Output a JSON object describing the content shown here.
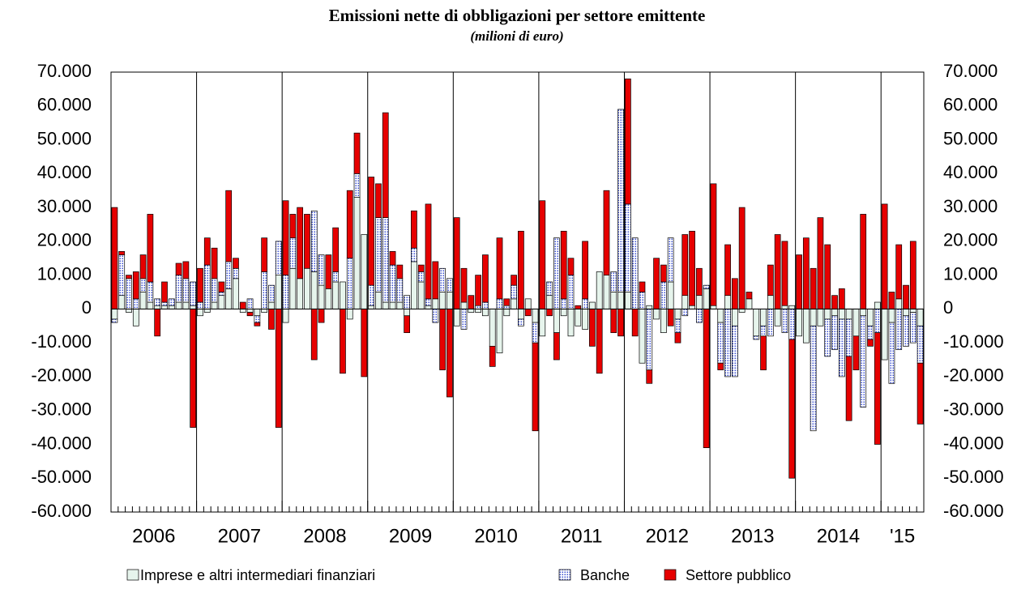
{
  "chart_data": {
    "type": "stacked_bar",
    "title": "Emissioni nette di obbligazioni per settore emittente",
    "subtitle": "(milioni di euro)",
    "year_labels": [
      "2006",
      "2007",
      "2008",
      "2009",
      "2010",
      "2011",
      "2012",
      "2013",
      "2014",
      "'15"
    ],
    "ylim": [
      -60000,
      70000
    ],
    "yticks": [
      {
        "value": -60000,
        "label": "-60.000"
      },
      {
        "value": -50000,
        "label": "-50.000"
      },
      {
        "value": -40000,
        "label": "-40.000"
      },
      {
        "value": -30000,
        "label": "-30.000"
      },
      {
        "value": -20000,
        "label": "-20.000"
      },
      {
        "value": -10000,
        "label": "-10.000"
      },
      0,
      {
        "value": 10000,
        "label": "10.000"
      },
      {
        "value": 20000,
        "label": "20.000"
      },
      {
        "value": 30000,
        "label": "30.000"
      },
      {
        "value": 40000,
        "label": "40.000"
      },
      {
        "value": 50000,
        "label": "50.000"
      },
      {
        "value": 60000,
        "label": "60.000"
      },
      {
        "value": 70000,
        "label": "70.000"
      }
    ],
    "y2lim": [
      -60000,
      70000
    ],
    "y2ticks": [
      {
        "value": -60000,
        "label": "-60.000"
      },
      {
        "value": -50000,
        "label": "-50.000"
      },
      {
        "value": -40000,
        "label": "-40.000"
      },
      {
        "value": -30000,
        "label": "-30.000"
      },
      {
        "value": -20000,
        "label": "-20.000"
      },
      {
        "value": -10000,
        "label": "-10.000"
      },
      0,
      {
        "value": 10000,
        "label": "10.000"
      },
      {
        "value": 20000,
        "label": "20.000"
      },
      {
        "value": 30000,
        "label": "30.000"
      },
      {
        "value": 40000,
        "label": "40.000"
      },
      {
        "value": 50000,
        "label": "50.000"
      },
      {
        "value": 60000,
        "label": "60.000"
      },
      {
        "value": 70000,
        "label": "70.000"
      }
    ],
    "series": [
      {
        "name": "Imprese e altri intermediari finanziari",
        "color": "#e6f4ec",
        "pattern": "solid",
        "values": [
          -3000,
          4000,
          -1000,
          -5000,
          5000,
          2000,
          1000,
          1000,
          1000,
          2000,
          2000,
          1000,
          -2000,
          -1000,
          2000,
          4000,
          6000,
          9000,
          -1000,
          -1000,
          -2000,
          -1000,
          2000,
          10000,
          -4000,
          12000,
          9000,
          12000,
          11000,
          7000,
          6000,
          8000,
          8000,
          -3000,
          33000,
          22000,
          1000,
          5000,
          2000,
          2000,
          2000,
          -2000,
          14000,
          8000,
          1000,
          3000,
          5000,
          5000,
          -5000,
          2000,
          -1000,
          -1000,
          -2000,
          -11000,
          -13000,
          -2000,
          3000,
          -3000,
          3000,
          -4000,
          -8000,
          4000,
          -7000,
          -2000,
          -8000,
          -5000,
          -6000,
          2000,
          11000,
          10000,
          5000,
          5000,
          5000,
          0,
          -16000,
          1000,
          -3000,
          -7000,
          8000,
          -3000,
          4000,
          1000,
          4000,
          6000,
          1000,
          -4000,
          4000,
          -5000,
          -1000,
          3000,
          -8000,
          -5000,
          4000,
          -5000,
          1000,
          1000,
          -8000,
          -10000,
          -5000,
          -5000,
          -3000,
          -2000,
          -3000,
          -3000,
          -8000,
          -2000,
          -5000,
          2000,
          -15000,
          -4000,
          3000,
          -2000,
          -1000,
          -5000
        ]
      },
      {
        "name": "Banche",
        "color": "#3a4fd0",
        "pattern": "dots",
        "values": [
          -1000,
          12000,
          9000,
          3000,
          4000,
          6000,
          2000,
          1000,
          2000,
          8000,
          7000,
          7000,
          2000,
          13000,
          7000,
          1000,
          8000,
          3000,
          0,
          3000,
          -2000,
          11000,
          5000,
          10000,
          10000,
          9000,
          0,
          0,
          18000,
          9000,
          0,
          3000,
          0,
          15000,
          7000,
          0,
          6000,
          22000,
          25000,
          11000,
          7000,
          4000,
          4000,
          3000,
          2000,
          -4000,
          7000,
          4000,
          0,
          -6000,
          0,
          1000,
          2000,
          0,
          3000,
          1000,
          4000,
          -2000,
          0,
          -6000,
          0,
          4000,
          21000,
          3000,
          10000,
          0,
          3000,
          0,
          0,
          0,
          6000,
          54000,
          26000,
          21000,
          5000,
          -18000,
          0,
          8000,
          13000,
          -4000,
          -2000,
          0,
          -4000,
          1000,
          0,
          -12000,
          -20000,
          -15000,
          0,
          0,
          -1000,
          -3000,
          -8000,
          0,
          -7000,
          -9000,
          0,
          0,
          -31000,
          0,
          -11000,
          -10000,
          -17000,
          -11000,
          0,
          -27000,
          -4000,
          -7000,
          0,
          -18000,
          -12000,
          -9000,
          -9000,
          -11000
        ]
      },
      {
        "name": "Settore pubblico",
        "color": "#e60000",
        "pattern": "solid",
        "values": [
          30000,
          1000,
          1000,
          8000,
          7000,
          20000,
          -8000,
          6000,
          0,
          3500,
          5000,
          -35000,
          10000,
          8000,
          9000,
          3000,
          21000,
          3000,
          2000,
          -1000,
          -1000,
          10000,
          -6000,
          -35000,
          22000,
          7000,
          21000,
          16000,
          -15000,
          -4000,
          10000,
          13000,
          -19000,
          20000,
          12000,
          -20000,
          32000,
          10000,
          31000,
          4000,
          4000,
          -5000,
          11000,
          2000,
          28000,
          11000,
          -18000,
          -26000,
          27000,
          10000,
          4000,
          9000,
          14000,
          -6000,
          18000,
          2000,
          3000,
          23000,
          -2000,
          -26000,
          32000,
          -2000,
          -8000,
          20000,
          5000,
          1000,
          17000,
          -11000,
          -19000,
          25000,
          -7000,
          -8000,
          37000,
          -8000,
          3000,
          -4000,
          15000,
          5000,
          -5000,
          -3000,
          18000,
          22000,
          8000,
          -41000,
          36000,
          -2000,
          15000,
          9000,
          30000,
          2000,
          0,
          -10000,
          9000,
          22000,
          19000,
          -41000,
          16000,
          21000,
          12000,
          27000,
          19000,
          4000,
          6000,
          -19000,
          -10000,
          28000,
          -2000,
          -33000,
          31000,
          5000,
          16000,
          7000,
          20000,
          -18000
        ]
      }
    ]
  }
}
